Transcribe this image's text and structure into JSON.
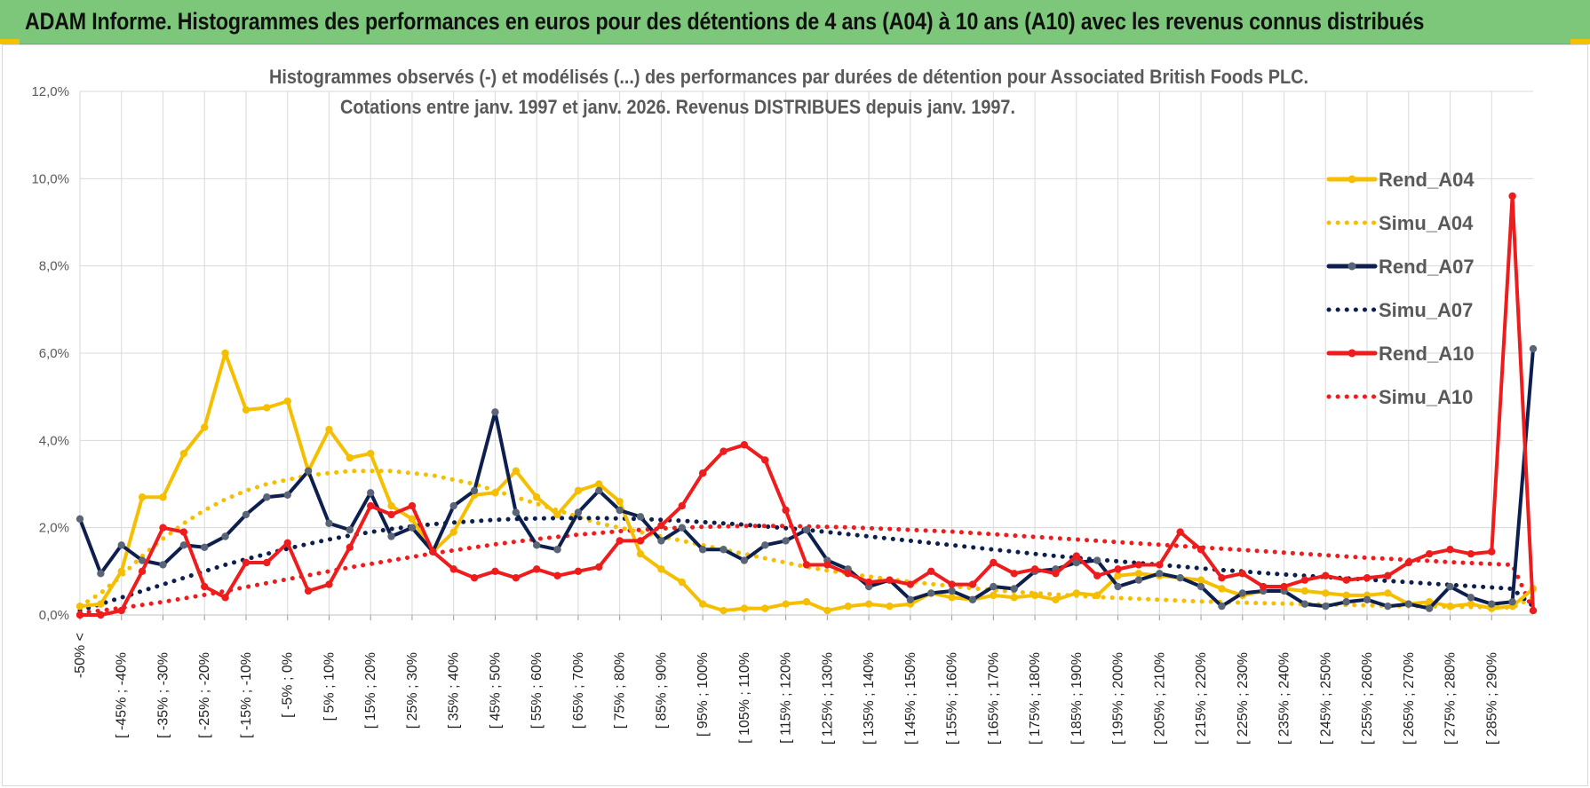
{
  "header": {
    "title": "ADAM Informe. Histogrammes des performances en euros pour des détentions de 4 ans (A04) à 10 ans (A10) avec les revenus connus distribués"
  },
  "colors": {
    "a04": "#f5bf00",
    "a07": "#0d1f4f",
    "a10": "#ee1c1c",
    "banner": "#7dc77b",
    "grid": "#d9d9d9"
  },
  "chart_data": {
    "type": "line",
    "title_line1": "Histogrammes observés (-) et modélisés (...) des performances par durées de détention pour Associated British Foods PLC.",
    "title_line2": "Cotations entre janv. 1997 et janv. 2026. Revenus DISTRIBUES depuis janv. 1997.",
    "ylim": [
      0,
      12
    ],
    "yticks": [
      0,
      2,
      4,
      6,
      8,
      10,
      12
    ],
    "ytick_labels": [
      "0,0%",
      "2,0%",
      "4,0%",
      "6,0%",
      "8,0%",
      "10,0%",
      "12,0%"
    ],
    "x_labels": [
      "-50% <",
      "[ -45% ; -40%",
      "[ -35% ; -30%",
      "[ -25% ; -20%",
      "[ -15% ; -10%",
      "[ -5% ; 0%",
      "[ 5% ; 10%",
      "[ 15% ; 20%",
      "[ 25% ; 30%",
      "[ 35% ; 40%",
      "[ 45% ; 50%",
      "[ 55% ; 60%",
      "[ 65% ; 70%",
      "[ 75% ; 80%",
      "[ 85% ; 90%",
      "[ 95% ; 100%",
      "[ 105% ; 110%",
      "[ 115% ; 120%",
      "[ 125% ; 130%",
      "[ 135% ; 140%",
      "[ 145% ; 150%",
      "[ 155% ; 160%",
      "[ 165% ; 170%",
      "[ 175% ; 180%",
      "[ 185% ; 190%",
      "[ 195% ; 200%",
      "[ 205% ; 210%",
      "[ 215% ; 220%",
      "[ 225% ; 230%",
      "[ 235% ; 240%",
      "[ 245% ; 250%",
      "[ 255% ; 260%",
      "[ 265% ; 270%",
      "[ 275% ; 280%",
      "[ 285% ; 290%"
    ],
    "n_bins": 71,
    "series": [
      {
        "name": "Rend_A04",
        "style": "solid",
        "marker": true,
        "color": "#f5bf00",
        "values": [
          0.2,
          0.25,
          1.0,
          2.7,
          2.7,
          3.7,
          4.3,
          6.0,
          4.7,
          4.75,
          4.9,
          3.3,
          4.25,
          3.6,
          3.7,
          2.5,
          2.2,
          1.45,
          1.9,
          2.75,
          2.8,
          3.3,
          2.7,
          2.3,
          2.85,
          3.0,
          2.6,
          1.4,
          1.05,
          0.75,
          0.25,
          0.1,
          0.15,
          0.15,
          0.25,
          0.3,
          0.1,
          0.2,
          0.25,
          0.2,
          0.25,
          0.5,
          0.4,
          0.35,
          0.45,
          0.4,
          0.45,
          0.35,
          0.5,
          0.45,
          0.9,
          0.95,
          0.9,
          0.85,
          0.8,
          0.6,
          0.45,
          0.55,
          0.6,
          0.55,
          0.5,
          0.45,
          0.45,
          0.5,
          0.25,
          0.3,
          0.2,
          0.25,
          0.15,
          0.2,
          0.6
        ]
      },
      {
        "name": "Simu_A04",
        "style": "dotted",
        "marker": false,
        "color": "#f5bf00",
        "values": [
          0.2,
          0.5,
          0.9,
          1.35,
          1.75,
          2.1,
          2.4,
          2.65,
          2.85,
          3.0,
          3.1,
          3.2,
          3.25,
          3.3,
          3.3,
          3.3,
          3.25,
          3.2,
          3.1,
          3.0,
          2.85,
          2.7,
          2.55,
          2.4,
          2.25,
          2.1,
          2.0,
          1.9,
          1.8,
          1.7,
          1.6,
          1.5,
          1.4,
          1.3,
          1.2,
          1.1,
          1.02,
          0.95,
          0.88,
          0.82,
          0.76,
          0.71,
          0.66,
          0.61,
          0.57,
          0.53,
          0.5,
          0.47,
          0.44,
          0.41,
          0.39,
          0.37,
          0.35,
          0.33,
          0.31,
          0.3,
          0.28,
          0.27,
          0.26,
          0.25,
          0.24,
          0.23,
          0.22,
          0.21,
          0.2,
          0.2,
          0.19,
          0.18,
          0.18,
          0.17,
          0.4
        ]
      },
      {
        "name": "Rend_A07",
        "style": "solid",
        "marker": true,
        "color": "#0d1f4f",
        "values": [
          2.2,
          0.95,
          1.6,
          1.25,
          1.15,
          1.6,
          1.55,
          1.8,
          2.3,
          2.7,
          2.75,
          3.3,
          2.1,
          1.95,
          2.8,
          1.8,
          2.0,
          1.45,
          2.5,
          2.85,
          4.65,
          2.35,
          1.6,
          1.5,
          2.35,
          2.85,
          2.4,
          2.25,
          1.7,
          2.0,
          1.5,
          1.5,
          1.25,
          1.6,
          1.7,
          1.95,
          1.25,
          1.05,
          0.65,
          0.8,
          0.35,
          0.5,
          0.55,
          0.35,
          0.65,
          0.6,
          1.0,
          1.05,
          1.2,
          1.25,
          0.65,
          0.8,
          0.95,
          0.85,
          0.65,
          0.2,
          0.5,
          0.55,
          0.55,
          0.25,
          0.2,
          0.3,
          0.35,
          0.2,
          0.25,
          0.15,
          0.65,
          0.4,
          0.25,
          0.3,
          6.1
        ]
      },
      {
        "name": "Simu_A07",
        "style": "dotted",
        "marker": false,
        "color": "#0d1f4f",
        "values": [
          0.1,
          0.25,
          0.4,
          0.55,
          0.7,
          0.85,
          1.0,
          1.15,
          1.28,
          1.4,
          1.52,
          1.63,
          1.73,
          1.82,
          1.9,
          1.97,
          2.03,
          2.08,
          2.12,
          2.15,
          2.18,
          2.2,
          2.21,
          2.22,
          2.22,
          2.22,
          2.21,
          2.2,
          2.18,
          2.16,
          2.13,
          2.1,
          2.07,
          2.03,
          1.99,
          1.95,
          1.9,
          1.85,
          1.8,
          1.75,
          1.7,
          1.65,
          1.6,
          1.55,
          1.5,
          1.45,
          1.4,
          1.35,
          1.31,
          1.27,
          1.23,
          1.19,
          1.15,
          1.11,
          1.07,
          1.03,
          1.0,
          0.96,
          0.93,
          0.9,
          0.87,
          0.84,
          0.81,
          0.78,
          0.75,
          0.72,
          0.69,
          0.66,
          0.63,
          0.6,
          0.2
        ]
      },
      {
        "name": "Rend_A10",
        "style": "solid",
        "marker": true,
        "color": "#ee1c1c",
        "values": [
          0.0,
          0.0,
          0.1,
          1.0,
          2.0,
          1.9,
          0.65,
          0.4,
          1.2,
          1.2,
          1.65,
          0.55,
          0.7,
          1.55,
          2.5,
          2.3,
          2.5,
          1.45,
          1.05,
          0.85,
          1.0,
          0.85,
          1.05,
          0.9,
          1.0,
          1.1,
          1.7,
          1.7,
          2.05,
          2.5,
          3.25,
          3.75,
          3.9,
          3.55,
          2.4,
          1.15,
          1.15,
          0.95,
          0.75,
          0.8,
          0.7,
          1.0,
          0.7,
          0.7,
          1.2,
          0.95,
          1.05,
          0.95,
          1.35,
          0.9,
          1.05,
          1.15,
          1.15,
          1.9,
          1.5,
          0.85,
          0.95,
          0.65,
          0.65,
          0.8,
          0.9,
          0.8,
          0.85,
          0.9,
          1.2,
          1.4,
          1.5,
          1.4,
          1.45,
          9.6,
          0.1
        ]
      },
      {
        "name": "Simu_A10",
        "style": "dotted",
        "marker": false,
        "color": "#ee1c1c",
        "values": [
          0.05,
          0.1,
          0.16,
          0.23,
          0.3,
          0.38,
          0.46,
          0.55,
          0.64,
          0.73,
          0.82,
          0.91,
          1.0,
          1.09,
          1.17,
          1.25,
          1.33,
          1.41,
          1.48,
          1.55,
          1.62,
          1.68,
          1.74,
          1.79,
          1.84,
          1.88,
          1.92,
          1.95,
          1.98,
          2.0,
          2.02,
          2.03,
          2.04,
          2.04,
          2.04,
          2.03,
          2.02,
          2.01,
          1.99,
          1.97,
          1.95,
          1.93,
          1.91,
          1.88,
          1.85,
          1.82,
          1.79,
          1.76,
          1.73,
          1.7,
          1.67,
          1.64,
          1.61,
          1.58,
          1.55,
          1.52,
          1.49,
          1.46,
          1.43,
          1.4,
          1.37,
          1.34,
          1.31,
          1.29,
          1.26,
          1.24,
          1.21,
          1.19,
          1.17,
          1.15,
          0.1
        ]
      }
    ],
    "legend": [
      "Rend_A04",
      "Simu_A04",
      "Rend_A07",
      "Simu_A07",
      "Rend_A10",
      "Simu_A10"
    ],
    "legend_position": "top-right",
    "grid": true
  }
}
